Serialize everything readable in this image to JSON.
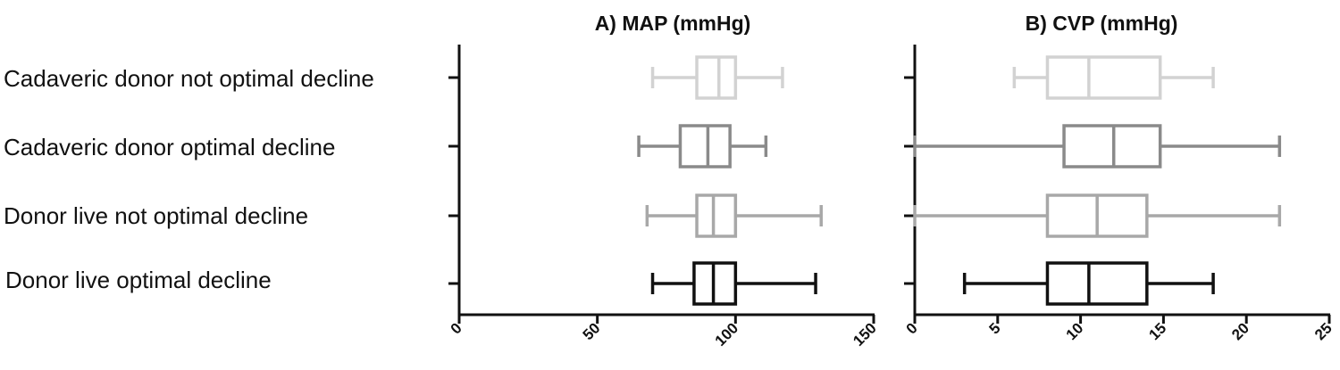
{
  "chart_data": {
    "type": "boxplot",
    "categories": [
      "Cadaveric donor not optimal decline",
      "Cadaveric donor optimal decline",
      "Donor live not optimal decline",
      "Donor live optimal decline"
    ],
    "colors": [
      "#d2d2d2",
      "#8a8a8a",
      "#a8a8a8",
      "#111111"
    ],
    "panels": [
      {
        "title": "A) MAP (mmHg)",
        "xlim": [
          0,
          150
        ],
        "ticks": [
          "0",
          "50",
          "100",
          "150"
        ],
        "boxes": [
          {
            "min": 70,
            "q1": 86,
            "median": 94,
            "q3": 100,
            "max": 117
          },
          {
            "min": 65,
            "q1": 80,
            "median": 90,
            "q3": 98,
            "max": 111
          },
          {
            "min": 68,
            "q1": 86,
            "median": 92,
            "q3": 100,
            "max": 131
          },
          {
            "min": 70,
            "q1": 85,
            "median": 92,
            "q3": 100,
            "max": 129
          }
        ]
      },
      {
        "title": "B) CVP (mmHg)",
        "xlim": [
          0,
          25
        ],
        "ticks": [
          "0",
          "5",
          "10",
          "15",
          "20",
          "25"
        ],
        "boxes": [
          {
            "min": 6,
            "q1": 8,
            "median": 10.5,
            "q3": 14.8,
            "max": 18
          },
          {
            "min": 0,
            "q1": 9,
            "median": 12,
            "q3": 14.8,
            "max": 22
          },
          {
            "min": 0,
            "q1": 8,
            "median": 11,
            "q3": 14,
            "max": 22
          },
          {
            "min": 3,
            "q1": 8,
            "median": 10.5,
            "q3": 14,
            "max": 18
          }
        ]
      }
    ]
  }
}
